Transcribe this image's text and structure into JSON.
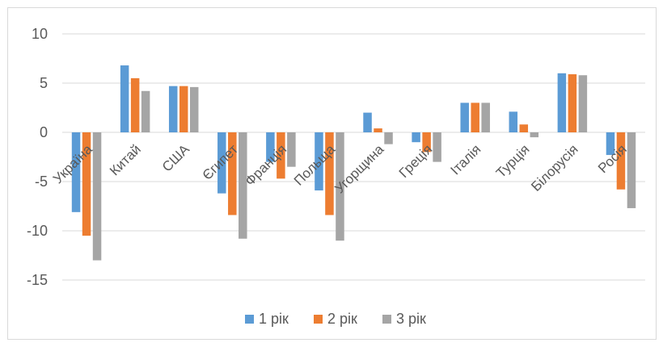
{
  "chart_data": {
    "type": "bar",
    "title": "",
    "xlabel": "",
    "ylabel": "",
    "ylim": [
      -15,
      10
    ],
    "yticks": [
      "10",
      "5",
      "0",
      "-5",
      "-10",
      "-15"
    ],
    "ytick_values": [
      10,
      5,
      0,
      -5,
      -10,
      -15
    ],
    "grid": true,
    "legend": "bottom",
    "categories": [
      "Україна",
      "Китай",
      "США",
      "Єгипет",
      "Франція",
      "Польща",
      "Угорщина",
      "Греція",
      "Італія",
      "Турція",
      "Білорусія",
      "Росія"
    ],
    "series": [
      {
        "name": "1 рік",
        "color": "#5b9bd5",
        "values": [
          -8.1,
          6.8,
          4.7,
          -6.2,
          -3.0,
          -5.9,
          2.0,
          -1.0,
          3.0,
          2.1,
          6.0,
          -2.3
        ]
      },
      {
        "name": "2 рік",
        "color": "#ed7d31",
        "values": [
          -10.5,
          5.5,
          4.7,
          -8.4,
          -4.7,
          -8.4,
          0.4,
          -2.0,
          3.0,
          0.8,
          5.9,
          -5.8
        ]
      },
      {
        "name": "3 рік",
        "color": "#a5a5a5",
        "values": [
          -13.0,
          4.2,
          4.6,
          -10.8,
          -3.5,
          -11.0,
          -1.2,
          -3.0,
          3.0,
          -0.5,
          5.8,
          -7.7
        ]
      }
    ]
  }
}
